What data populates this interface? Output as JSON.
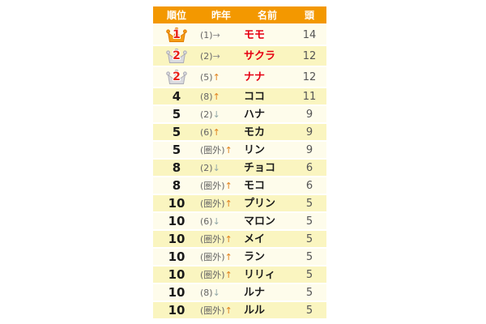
{
  "colors": {
    "header_bg": "#F39800",
    "row_odd": "#FEFCEB",
    "row_even": "#FAF5C0",
    "name_highlight": "#E60012",
    "crown_number": "#E8231A",
    "arrow_up": "#E0821E",
    "arrow_down": "#93A9A9",
    "arrow_same": "#888888",
    "crown_gold": "#F59D16",
    "crown_gold_outline": "#E07C00",
    "crown_silver": "#DADADE",
    "crown_silver_outline": "#ACACB6"
  },
  "chart_data": {
    "type": "table",
    "columns": [
      "順位",
      "昨年",
      "名前",
      "頭"
    ],
    "rows": [
      {
        "rank": "1",
        "crown": "gold",
        "last_year": "(1)",
        "arrow": "→",
        "name": "モモ",
        "count": "14",
        "name_highlight": true
      },
      {
        "rank": "2",
        "crown": "silver",
        "last_year": "(2)",
        "arrow": "→",
        "name": "サクラ",
        "count": "12",
        "name_highlight": true
      },
      {
        "rank": "2",
        "crown": "silver",
        "last_year": "(5)",
        "arrow": "↑",
        "name": "ナナ",
        "count": "12",
        "name_highlight": true
      },
      {
        "rank": "4",
        "crown": null,
        "last_year": "(8)",
        "arrow": "↑",
        "name": "ココ",
        "count": "11",
        "name_highlight": false
      },
      {
        "rank": "5",
        "crown": null,
        "last_year": "(2)",
        "arrow": "↓",
        "name": "ハナ",
        "count": "9",
        "name_highlight": false
      },
      {
        "rank": "5",
        "crown": null,
        "last_year": "(6)",
        "arrow": "↑",
        "name": "モカ",
        "count": "9",
        "name_highlight": false
      },
      {
        "rank": "5",
        "crown": null,
        "last_year": "(圏外)",
        "arrow": "↑",
        "name": "リン",
        "count": "9",
        "name_highlight": false
      },
      {
        "rank": "8",
        "crown": null,
        "last_year": "(2)",
        "arrow": "↓",
        "name": "チョコ",
        "count": "6",
        "name_highlight": false
      },
      {
        "rank": "8",
        "crown": null,
        "last_year": "(圏外)",
        "arrow": "↑",
        "name": "モコ",
        "count": "6",
        "name_highlight": false
      },
      {
        "rank": "10",
        "crown": null,
        "last_year": "(圏外)",
        "arrow": "↑",
        "name": "プリン",
        "count": "5",
        "name_highlight": false
      },
      {
        "rank": "10",
        "crown": null,
        "last_year": "(6)",
        "arrow": "↓",
        "name": "マロン",
        "count": "5",
        "name_highlight": false
      },
      {
        "rank": "10",
        "crown": null,
        "last_year": "(圏外)",
        "arrow": "↑",
        "name": "メイ",
        "count": "5",
        "name_highlight": false
      },
      {
        "rank": "10",
        "crown": null,
        "last_year": "(圏外)",
        "arrow": "↑",
        "name": "ラン",
        "count": "5",
        "name_highlight": false
      },
      {
        "rank": "10",
        "crown": null,
        "last_year": "(圏外)",
        "arrow": "↑",
        "name": "リリィ",
        "count": "5",
        "name_highlight": false
      },
      {
        "rank": "10",
        "crown": null,
        "last_year": "(8)",
        "arrow": "↓",
        "name": "ルナ",
        "count": "5",
        "name_highlight": false
      },
      {
        "rank": "10",
        "crown": null,
        "last_year": "(圏外)",
        "arrow": "↑",
        "name": "ルル",
        "count": "5",
        "name_highlight": false
      }
    ]
  }
}
